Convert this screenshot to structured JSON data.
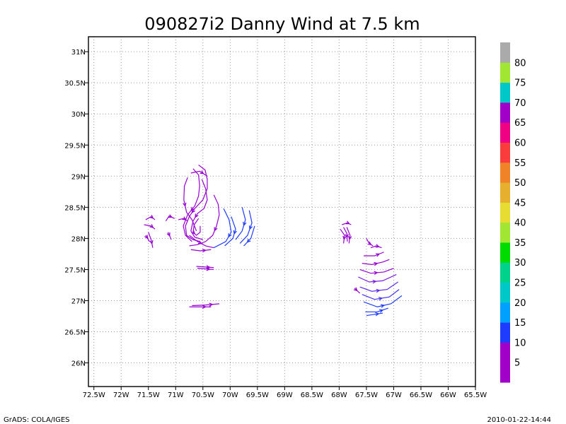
{
  "chart_data": {
    "type": "streamline",
    "title": "090827i2 Danny Wind at 7.5 km",
    "xlim": [
      -72.6,
      -65.5
    ],
    "ylim": [
      25.62,
      31.24
    ],
    "x_ticks": [
      {
        "value": -72.5,
        "label": "72.5W"
      },
      {
        "value": -72.0,
        "label": "72W"
      },
      {
        "value": -71.5,
        "label": "71.5W"
      },
      {
        "value": -71.0,
        "label": "71W"
      },
      {
        "value": -70.5,
        "label": "70.5W"
      },
      {
        "value": -70.0,
        "label": "70W"
      },
      {
        "value": -69.5,
        "label": "69.5W"
      },
      {
        "value": -69.0,
        "label": "69W"
      },
      {
        "value": -68.5,
        "label": "68.5W"
      },
      {
        "value": -68.0,
        "label": "68W"
      },
      {
        "value": -67.5,
        "label": "67.5W"
      },
      {
        "value": -67.0,
        "label": "67W"
      },
      {
        "value": -66.5,
        "label": "66.5W"
      },
      {
        "value": -66.0,
        "label": "66W"
      },
      {
        "value": -65.5,
        "label": "65.5W"
      }
    ],
    "y_ticks": [
      {
        "value": 26.0,
        "label": "26N"
      },
      {
        "value": 26.5,
        "label": "26.5N"
      },
      {
        "value": 27.0,
        "label": "27N"
      },
      {
        "value": 27.5,
        "label": "27.5N"
      },
      {
        "value": 28.0,
        "label": "28N"
      },
      {
        "value": 28.5,
        "label": "28.5N"
      },
      {
        "value": 29.0,
        "label": "29N"
      },
      {
        "value": 29.5,
        "label": "29.5N"
      },
      {
        "value": 30.0,
        "label": "30N"
      },
      {
        "value": 30.5,
        "label": "30.5N"
      },
      {
        "value": 31.0,
        "label": "31N"
      }
    ],
    "grid": true,
    "colorbar": {
      "placement": "right",
      "labels": [
        "5",
        "10",
        "15",
        "20",
        "25",
        "30",
        "35",
        "40",
        "45",
        "50",
        "55",
        "60",
        "65",
        "70",
        "75",
        "80"
      ],
      "colors": [
        "#a000c8",
        "#a000c8",
        "#1e3cff",
        "#00a0ff",
        "#00c8c8",
        "#00d28c",
        "#00dc00",
        "#a0e632",
        "#e6dc32",
        "#e6af2d",
        "#f08228",
        "#fa3c3c",
        "#f00082",
        "#a000c8",
        "#00c8c8",
        "#a0e632",
        "#aaaaaa"
      ]
    },
    "series": [
      {
        "color": "#9600d2",
        "points": [
          [
            -70.78,
            28.98
          ],
          [
            -70.84,
            28.84
          ],
          [
            -70.85,
            28.62
          ],
          [
            -70.8,
            28.42
          ],
          [
            -70.7,
            28.3
          ],
          [
            -70.62,
            28.12
          ]
        ]
      },
      {
        "color": "#9600d2",
        "points": [
          [
            -70.72,
            29.05
          ],
          [
            -70.56,
            29.08
          ],
          [
            -70.42,
            29.0
          ]
        ]
      },
      {
        "color": "#9600d2",
        "points": [
          [
            -70.68,
            29.12
          ],
          [
            -70.58,
            29.02
          ],
          [
            -70.56,
            28.85
          ],
          [
            -70.58,
            28.68
          ],
          [
            -70.65,
            28.52
          ],
          [
            -70.78,
            28.38
          ],
          [
            -70.86,
            28.2
          ],
          [
            -70.82,
            28.05
          ],
          [
            -70.7,
            27.95
          ]
        ]
      },
      {
        "color": "#9600d2",
        "points": [
          [
            -70.58,
            29.18
          ],
          [
            -70.46,
            29.1
          ],
          [
            -70.42,
            28.95
          ],
          [
            -70.42,
            28.8
          ],
          [
            -70.5,
            28.62
          ],
          [
            -70.65,
            28.48
          ],
          [
            -70.75,
            28.35
          ],
          [
            -70.82,
            28.2
          ],
          [
            -70.8,
            28.05
          ],
          [
            -70.68,
            27.98
          ],
          [
            -70.55,
            27.95
          ]
        ]
      },
      {
        "color": "#9600d2",
        "points": [
          [
            -70.52,
            28.95
          ],
          [
            -70.45,
            28.8
          ],
          [
            -70.42,
            28.62
          ],
          [
            -70.48,
            28.48
          ],
          [
            -70.6,
            28.4
          ],
          [
            -70.68,
            28.28
          ],
          [
            -70.72,
            28.12
          ],
          [
            -70.65,
            28.02
          ],
          [
            -70.5,
            27.98
          ]
        ]
      },
      {
        "color": "#9600d2",
        "points": [
          [
            -70.58,
            28.32
          ],
          [
            -70.66,
            28.22
          ],
          [
            -70.68,
            28.1
          ],
          [
            -70.62,
            28.05
          ],
          [
            -70.55,
            28.1
          ],
          [
            -70.55,
            28.2
          ]
        ]
      },
      {
        "color": "#9600d2",
        "points": [
          [
            -70.75,
            28.05
          ],
          [
            -70.6,
            27.95
          ],
          [
            -70.45,
            27.88
          ],
          [
            -70.3,
            27.85
          ]
        ]
      },
      {
        "color": "#9600d2",
        "points": [
          [
            -70.72,
            27.82
          ],
          [
            -70.55,
            27.8
          ],
          [
            -70.35,
            27.82
          ]
        ]
      },
      {
        "color": "#9600d2",
        "points": [
          [
            -70.3,
            28.7
          ],
          [
            -70.22,
            28.55
          ],
          [
            -70.2,
            28.38
          ],
          [
            -70.25,
            28.2
          ],
          [
            -70.32,
            28.05
          ],
          [
            -70.45,
            27.95
          ],
          [
            -70.6,
            27.9
          ],
          [
            -70.75,
            27.88
          ]
        ]
      },
      {
        "color": "#9600d2",
        "points": [
          [
            -71.55,
            28.3
          ],
          [
            -71.45,
            28.35
          ],
          [
            -71.38,
            28.3
          ]
        ]
      },
      {
        "color": "#9600d2",
        "points": [
          [
            -71.58,
            28.22
          ],
          [
            -71.45,
            28.2
          ],
          [
            -71.38,
            28.15
          ]
        ]
      },
      {
        "color": "#9600d2",
        "points": [
          [
            -71.5,
            28.1
          ],
          [
            -71.45,
            27.98
          ],
          [
            -71.42,
            27.85
          ]
        ]
      },
      {
        "color": "#9600d2",
        "points": [
          [
            -71.55,
            28.05
          ],
          [
            -71.48,
            27.95
          ]
        ]
      },
      {
        "color": "#9600d2",
        "points": [
          [
            -71.18,
            28.28
          ],
          [
            -71.12,
            28.36
          ],
          [
            -71.02,
            28.32
          ]
        ]
      },
      {
        "color": "#9600d2",
        "points": [
          [
            -71.14,
            28.1
          ],
          [
            -71.08,
            27.98
          ]
        ]
      },
      {
        "color": "#9600d2",
        "points": [
          [
            -70.95,
            28.3
          ],
          [
            -70.85,
            28.32
          ],
          [
            -70.78,
            28.28
          ]
        ]
      },
      {
        "color": "#9600d2",
        "points": [
          [
            -70.62,
            27.55
          ],
          [
            -70.45,
            27.54
          ],
          [
            -70.3,
            27.53
          ]
        ]
      },
      {
        "color": "#9600d2",
        "points": [
          [
            -70.6,
            27.52
          ],
          [
            -70.45,
            27.51
          ],
          [
            -70.3,
            27.5
          ]
        ]
      },
      {
        "color": "#9600d2",
        "points": [
          [
            -70.75,
            26.9
          ],
          [
            -70.55,
            26.9
          ],
          [
            -70.35,
            26.9
          ]
        ]
      },
      {
        "color": "#9600d2",
        "points": [
          [
            -70.7,
            26.92
          ],
          [
            -70.45,
            26.93
          ],
          [
            -70.2,
            26.95
          ]
        ]
      },
      {
        "color": "#1e3cff",
        "points": [
          [
            -70.12,
            28.48
          ],
          [
            -70.02,
            28.3
          ],
          [
            -69.98,
            28.1
          ],
          [
            -70.08,
            27.95
          ],
          [
            -70.3,
            27.85
          ]
        ]
      },
      {
        "color": "#1e3cff",
        "points": [
          [
            -69.98,
            28.35
          ],
          [
            -69.9,
            28.15
          ],
          [
            -69.95,
            28.0
          ],
          [
            -70.1,
            27.88
          ]
        ]
      },
      {
        "color": "#1e3cff",
        "points": [
          [
            -69.78,
            28.5
          ],
          [
            -69.72,
            28.3
          ],
          [
            -69.78,
            28.12
          ],
          [
            -69.9,
            27.98
          ]
        ]
      },
      {
        "color": "#1e3cff",
        "points": [
          [
            -69.65,
            28.45
          ],
          [
            -69.6,
            28.25
          ],
          [
            -69.68,
            28.05
          ],
          [
            -69.82,
            27.92
          ]
        ]
      },
      {
        "color": "#1e3cff",
        "points": [
          [
            -69.55,
            28.2
          ],
          [
            -69.62,
            28.0
          ],
          [
            -69.75,
            27.88
          ]
        ]
      },
      {
        "color": "#9600d2",
        "points": [
          [
            -67.95,
            28.22
          ],
          [
            -67.85,
            28.25
          ],
          [
            -67.78,
            28.22
          ]
        ]
      },
      {
        "color": "#9600d2",
        "points": [
          [
            -67.98,
            28.15
          ],
          [
            -67.9,
            28.05
          ],
          [
            -67.92,
            27.92
          ]
        ]
      },
      {
        "color": "#9600d2",
        "points": [
          [
            -67.92,
            28.18
          ],
          [
            -67.86,
            28.08
          ],
          [
            -67.85,
            27.95
          ]
        ]
      },
      {
        "color": "#9600d2",
        "points": [
          [
            -67.86,
            28.18
          ],
          [
            -67.8,
            28.05
          ],
          [
            -67.82,
            27.92
          ]
        ]
      },
      {
        "color": "#9600d2",
        "points": [
          [
            -67.42,
            27.85
          ],
          [
            -67.32,
            27.88
          ],
          [
            -67.22,
            27.85
          ]
        ]
      },
      {
        "color": "#9600d2",
        "points": [
          [
            -67.5,
            28.0
          ],
          [
            -67.45,
            27.92
          ],
          [
            -67.38,
            27.88
          ]
        ]
      },
      {
        "color": "#9600d2",
        "points": [
          [
            -67.55,
            27.72
          ],
          [
            -67.35,
            27.72
          ],
          [
            -67.18,
            27.78
          ]
        ]
      },
      {
        "color": "#9600d2",
        "points": [
          [
            -67.58,
            27.6
          ],
          [
            -67.4,
            27.58
          ],
          [
            -67.2,
            27.62
          ],
          [
            -67.08,
            27.66
          ]
        ]
      },
      {
        "color": "#9600d2",
        "points": [
          [
            -67.62,
            27.5
          ],
          [
            -67.42,
            27.44
          ],
          [
            -67.18,
            27.46
          ],
          [
            -67.0,
            27.52
          ]
        ]
      },
      {
        "color": "#7a1ee0",
        "points": [
          [
            -67.65,
            27.38
          ],
          [
            -67.45,
            27.3
          ],
          [
            -67.2,
            27.32
          ],
          [
            -66.95,
            27.42
          ]
        ]
      },
      {
        "color": "#5a28f0",
        "points": [
          [
            -67.62,
            27.22
          ],
          [
            -67.4,
            27.15
          ],
          [
            -67.12,
            27.18
          ],
          [
            -66.92,
            27.3
          ]
        ]
      },
      {
        "color": "#4030f5",
        "points": [
          [
            -67.58,
            27.1
          ],
          [
            -67.35,
            27.02
          ],
          [
            -67.08,
            27.06
          ],
          [
            -66.9,
            27.18
          ]
        ]
      },
      {
        "color": "#1e3cff",
        "points": [
          [
            -67.55,
            26.98
          ],
          [
            -67.3,
            26.9
          ],
          [
            -67.05,
            26.95
          ],
          [
            -66.85,
            27.08
          ]
        ]
      },
      {
        "color": "#1e3cff",
        "points": [
          [
            -67.52,
            26.82
          ],
          [
            -67.3,
            26.82
          ],
          [
            -67.1,
            26.88
          ]
        ]
      },
      {
        "color": "#1e3cff",
        "points": [
          [
            -67.5,
            26.76
          ],
          [
            -67.35,
            26.78
          ],
          [
            -67.2,
            26.8
          ]
        ]
      },
      {
        "color": "#9600d2",
        "points": [
          [
            -67.72,
            27.2
          ],
          [
            -67.62,
            27.12
          ]
        ]
      }
    ]
  },
  "footer": {
    "left": "GrADS: COLA/IGES",
    "right": "2010-01-22-14:44"
  }
}
